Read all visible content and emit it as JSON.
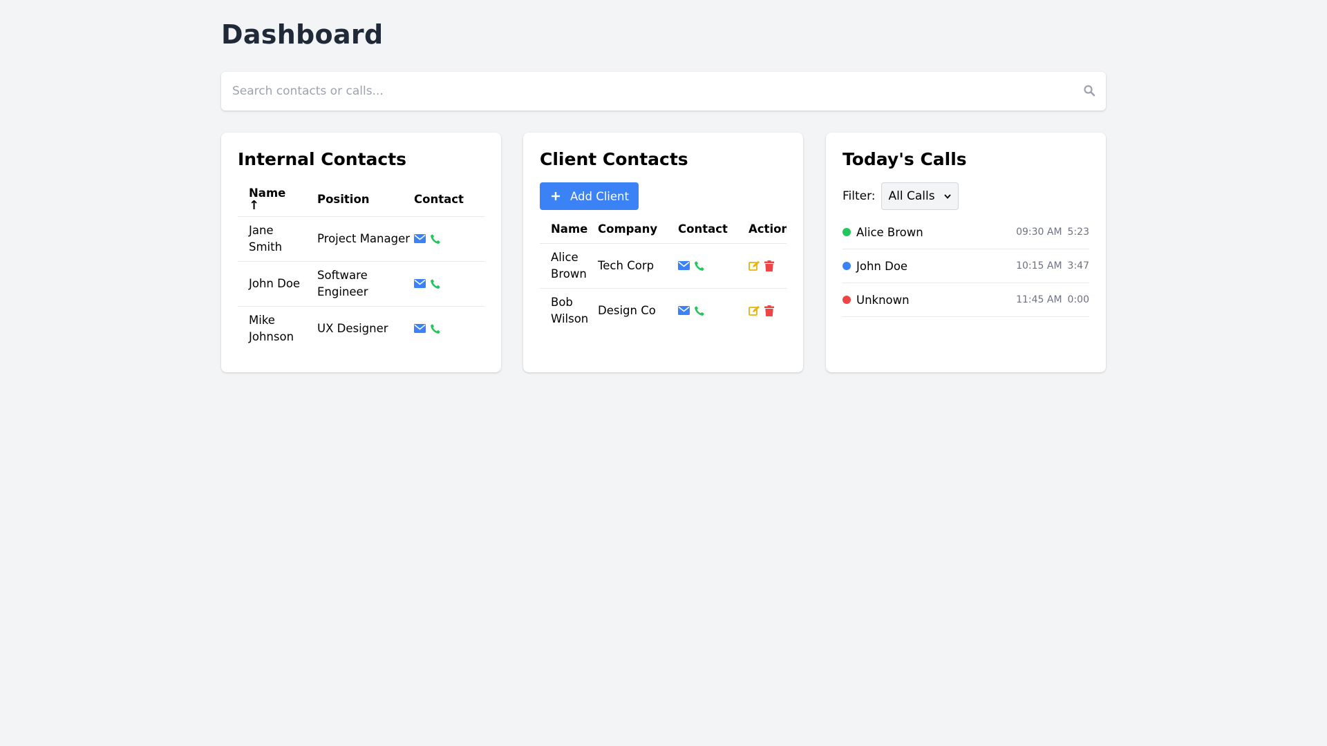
{
  "page": {
    "title": "Dashboard"
  },
  "search": {
    "placeholder": "Search contacts or calls...",
    "value": ""
  },
  "internal": {
    "title": "Internal Contacts",
    "columns": {
      "name": "Name",
      "sort_arrow": "↑",
      "position": "Position",
      "contact": "Contact"
    },
    "rows": [
      {
        "name": "Jane Smith",
        "position": "Project Manager"
      },
      {
        "name": "John Doe",
        "position": "Software Engineer"
      },
      {
        "name": "Mike Johnson",
        "position": "UX Designer"
      }
    ]
  },
  "clients": {
    "title": "Client Contacts",
    "add_label": "Add Client",
    "columns": {
      "name": "Name",
      "company": "Company",
      "contact": "Contact",
      "actions": "Actions"
    },
    "rows": [
      {
        "name": "Alice Brown",
        "company": "Tech Corp"
      },
      {
        "name": "Bob Wilson",
        "company": "Design Co"
      }
    ]
  },
  "calls": {
    "title": "Today's Calls",
    "filter_label": "Filter:",
    "filter_value": "All Calls",
    "items": [
      {
        "name": "Alice Brown",
        "time": "09:30 AM",
        "duration": "5:23",
        "status_color": "#22c55e"
      },
      {
        "name": "John Doe",
        "time": "10:15 AM",
        "duration": "3:47",
        "status_color": "#3b82f6"
      },
      {
        "name": "Unknown",
        "time": "11:45 AM",
        "duration": "0:00",
        "status_color": "#ef4444"
      }
    ]
  },
  "colors": {
    "accent": "#3b82f6",
    "email_icon": "#3b82f6",
    "phone_icon": "#22c55e",
    "edit_icon": "#eab308",
    "delete_icon": "#ef4444",
    "background": "#f3f4f6"
  },
  "icons": {
    "search": "search-icon",
    "sort": "arrow-up-icon",
    "email": "envelope-icon",
    "phone": "phone-icon",
    "add": "plus-icon",
    "edit": "edit-icon",
    "delete": "trash-icon",
    "dropdown": "chevron-down-icon"
  }
}
